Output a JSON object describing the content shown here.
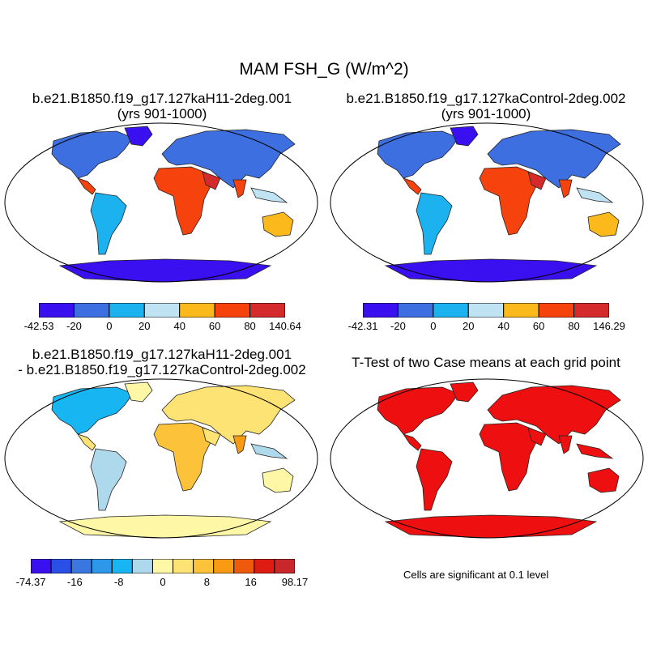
{
  "main_title": "MAM FSH_G (W/m^2)",
  "panels": {
    "top_left": {
      "title": "b.e21.B1850.f19_g17.127kaH11-2deg.001",
      "subtitle": "(yrs 901-1000)",
      "colorbar": {
        "colors": [
          "#3b10f0",
          "#3d6fe0",
          "#1cb2f0",
          "#bfe3f2",
          "#fbb91c",
          "#f6430e",
          "#d52a2c"
        ],
        "labels": [
          "-42.53",
          "-20",
          "0",
          "20",
          "40",
          "60",
          "80",
          "140.64"
        ]
      }
    },
    "top_right": {
      "title": "b.e21.B1850.f19_g17.127kaControl-2deg.002",
      "subtitle": "(yrs 901-1000)",
      "colorbar": {
        "colors": [
          "#3b10f0",
          "#3d6fe0",
          "#1cb2f0",
          "#bfe3f2",
          "#fbb91c",
          "#f6430e",
          "#d52a2c"
        ],
        "labels": [
          "-42.31",
          "-20",
          "0",
          "20",
          "40",
          "60",
          "80",
          "146.29"
        ]
      }
    },
    "bottom_left": {
      "title": "b.e21.B1850.f19_g17.127kaH11-2deg.001",
      "subtitle": "- b.e21.B1850.f19_g17.127kaControl-2deg.002",
      "colorbar": {
        "colors": [
          "#3b10f0",
          "#2a4fe6",
          "#3a77e0",
          "#2d97ea",
          "#17b6f2",
          "#aed8ec",
          "#fdf7a6",
          "#fde274",
          "#fcc23a",
          "#f89b12",
          "#ee5a0c",
          "#df1c12",
          "#c8282c"
        ],
        "labels": [
          "-74.37",
          "-16",
          "-8",
          "0",
          "8",
          "16",
          "98.17"
        ]
      }
    },
    "bottom_right": {
      "title": "T-Test of two Case means at each grid point",
      "note": "Cells are significant at 0.1 level",
      "fill_color": "#ee1010"
    }
  }
}
